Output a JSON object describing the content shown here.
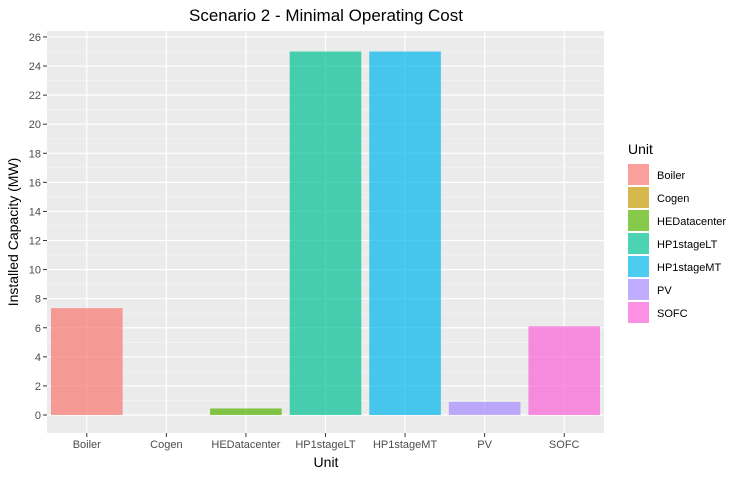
{
  "chart_data": {
    "type": "bar",
    "title": "Scenario 2 - Minimal Operating Cost",
    "xlabel": "Unit",
    "ylabel": "Installed Capacity (MW)",
    "categories": [
      "Boiler",
      "Cogen",
      "HEDatacenter",
      "HP1stageLT",
      "HP1stageMT",
      "PV",
      "SOFC"
    ],
    "values": [
      7.35,
      0,
      0.45,
      25,
      25,
      0.9,
      6.1
    ],
    "colors": [
      "#F8766D",
      "#C49A00",
      "#53B400",
      "#00C094",
      "#00B6EB",
      "#A58AFF",
      "#FB61D7"
    ],
    "yticks": [
      0,
      2,
      4,
      6,
      8,
      10,
      12,
      14,
      16,
      18,
      20,
      22,
      24,
      26
    ],
    "ylim": [
      -1.25,
      26.3
    ],
    "grid": true,
    "legend": {
      "title": "Unit",
      "position": "right",
      "entries": [
        "Boiler",
        "Cogen",
        "HEDatacenter",
        "HP1stageLT",
        "HP1stageMT",
        "PV",
        "SOFC"
      ]
    }
  }
}
